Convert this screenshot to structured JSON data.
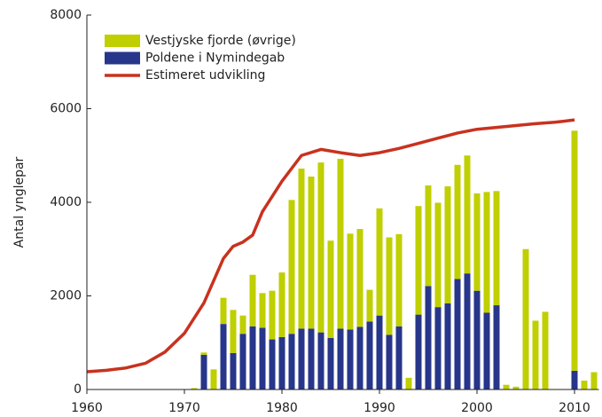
{
  "chart_data": {
    "type": "bar",
    "stacked": true,
    "ylabel": "Antal ynglepar",
    "x": [
      1971,
      1972,
      1973,
      1974,
      1975,
      1976,
      1977,
      1978,
      1979,
      1980,
      1981,
      1982,
      1983,
      1984,
      1985,
      1986,
      1987,
      1988,
      1989,
      1990,
      1991,
      1992,
      1993,
      1994,
      1995,
      1996,
      1997,
      1998,
      1999,
      2000,
      2001,
      2002,
      2003,
      2004,
      2005,
      2006,
      2007,
      2010,
      2011,
      2012
    ],
    "series": [
      {
        "name": "Vestjyske fjorde (øvrige)",
        "color": "#bfcf00",
        "stack_order": 2,
        "values": [
          30,
          50,
          430,
          560,
          920,
          390,
          1100,
          740,
          1040,
          1380,
          2860,
          3420,
          3250,
          3630,
          2080,
          3630,
          2050,
          2090,
          680,
          2290,
          2080,
          1970,
          250,
          2320,
          2150,
          2230,
          2500,
          2440,
          2520,
          2080,
          2580,
          2440,
          100,
          60,
          3000,
          1470,
          1660,
          5130,
          190,
          370
        ]
      },
      {
        "name": "Poldene i Nymindegab",
        "color": "#27368a",
        "stack_order": 1,
        "values": [
          null,
          740,
          null,
          1400,
          780,
          1190,
          1350,
          1320,
          1070,
          1120,
          1190,
          1300,
          1300,
          1220,
          1100,
          1300,
          1280,
          1340,
          1450,
          1580,
          1170,
          1350,
          null,
          1600,
          2210,
          1760,
          1840,
          2360,
          2480,
          2110,
          1640,
          1800,
          null,
          null,
          null,
          null,
          null,
          400,
          null,
          null
        ]
      },
      {
        "name": "Estimeret udvikling",
        "color": "#c8321e",
        "type": "line",
        "x": [
          1960,
          1962,
          1964,
          1966,
          1968,
          1970,
          1972,
          1974,
          1975,
          1976,
          1977,
          1978,
          1980,
          1982,
          1984,
          1986,
          1988,
          1990,
          1992,
          1994,
          1996,
          1998,
          2000,
          2002,
          2004,
          2006,
          2008,
          2010
        ],
        "values": [
          380,
          410,
          460,
          560,
          800,
          1200,
          1850,
          2800,
          3060,
          3150,
          3300,
          3800,
          4450,
          5000,
          5130,
          5060,
          5000,
          5060,
          5150,
          5260,
          5370,
          5480,
          5560,
          5600,
          5640,
          5680,
          5710,
          5760
        ]
      }
    ],
    "xlim": [
      1960,
      2012.5
    ],
    "xticks": [
      1960,
      1970,
      1980,
      1990,
      2000,
      2010
    ],
    "ylim": [
      0,
      8000
    ],
    "yticks": [
      0,
      2000,
      4000,
      6000,
      8000
    ],
    "grid": false,
    "legend": "upper left"
  }
}
